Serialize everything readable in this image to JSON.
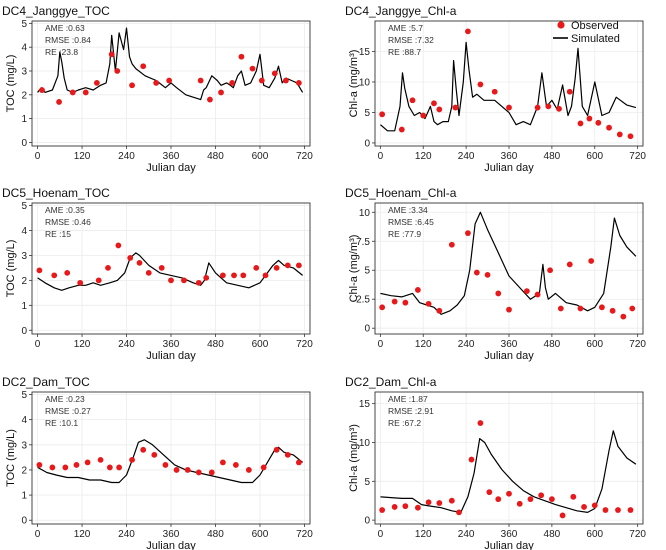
{
  "figure": {
    "x_axis_label": "Julian day",
    "legend": {
      "observed": "Observed",
      "simulated": "Simulated",
      "position": "top-right of DC4_Janggye_Chl-a panel"
    },
    "stat_labels": {
      "ame": "AME",
      "rmse": "RMSE",
      "re": "RE"
    },
    "colors": {
      "observed": "#e8191a",
      "simulated": "#000000",
      "panel_border": "#333333",
      "grid": "#ececec"
    }
  },
  "chart_data": [
    {
      "type": "scatter",
      "title": "DC4_Janggye_TOC",
      "xlabel": "Julian day",
      "ylabel": "TOC (mg/L)",
      "xlim": [
        -15,
        735
      ],
      "ylim": [
        -0.15,
        5.1
      ],
      "xticks": [
        0,
        120,
        240,
        360,
        480,
        600,
        720
      ],
      "yticks": [
        0,
        1,
        2,
        3,
        4,
        5
      ],
      "stats": {
        "ame": ":0.63",
        "rmse": ":0.84",
        "re": ":23.8"
      },
      "observed": {
        "name": "Observed",
        "x": [
          12,
          58,
          95,
          130,
          160,
          200,
          215,
          255,
          285,
          320,
          355,
          440,
          465,
          495,
          525,
          550,
          580,
          605,
          640,
          670,
          705
        ],
        "y": [
          2.2,
          1.7,
          2.1,
          2.1,
          2.5,
          3.7,
          3.0,
          2.4,
          3.2,
          2.5,
          2.6,
          2.6,
          1.8,
          2.1,
          2.5,
          3.6,
          3.1,
          2.6,
          2.9,
          2.6,
          2.5
        ]
      },
      "simulated": {
        "name": "Simulated",
        "x": [
          0,
          10,
          20,
          40,
          55,
          60,
          65,
          72,
          80,
          95,
          110,
          130,
          150,
          170,
          185,
          195,
          200,
          210,
          220,
          232,
          240,
          248,
          255,
          265,
          290,
          320,
          345,
          360,
          375,
          400,
          420,
          440,
          448,
          455,
          470,
          485,
          495,
          510,
          520,
          528,
          540,
          550,
          560,
          575,
          590,
          600,
          610,
          625,
          640,
          650,
          660,
          670,
          685,
          700,
          715
        ],
        "y": [
          2.1,
          2.3,
          2.1,
          2.2,
          2.8,
          3.8,
          3.4,
          2.7,
          2.2,
          2.1,
          2.2,
          2.3,
          2.2,
          2.4,
          2.5,
          3.3,
          4.5,
          3.0,
          4.6,
          3.9,
          4.8,
          3.6,
          3.3,
          3.1,
          2.8,
          2.6,
          2.3,
          2.5,
          2.3,
          2.0,
          1.9,
          1.8,
          2.2,
          2.3,
          2.8,
          2.6,
          2.4,
          2.5,
          2.4,
          2.3,
          2.8,
          3.0,
          2.4,
          2.5,
          3.0,
          3.7,
          2.4,
          2.3,
          2.7,
          3.2,
          2.5,
          2.7,
          2.6,
          2.5,
          2.1
        ]
      }
    },
    {
      "type": "scatter",
      "title": "DC4_Janggye_Chl-a",
      "xlabel": "Julian day",
      "ylabel": "Chl-a (mg/m³)",
      "xlim": [
        -15,
        735
      ],
      "ylim": [
        -0.5,
        20
      ],
      "xticks": [
        0,
        120,
        240,
        360,
        480,
        600,
        720
      ],
      "yticks": [
        0,
        5,
        10,
        15
      ],
      "stats": {
        "ame": ":5.7",
        "rmse": ":7.32",
        "re": ":88.7"
      },
      "observed": {
        "name": "Observed",
        "x": [
          5,
          60,
          90,
          120,
          150,
          165,
          210,
          245,
          280,
          320,
          360,
          440,
          470,
          500,
          530,
          560,
          585,
          610,
          640,
          670,
          700
        ],
        "y": [
          4.7,
          2.2,
          7.0,
          4.5,
          6.5,
          5.5,
          5.8,
          18.3,
          9.6,
          8.4,
          5.8,
          5.8,
          6.0,
          5.6,
          8.4,
          3.2,
          4.0,
          3.3,
          2.5,
          1.4,
          1.1
        ]
      },
      "simulated": {
        "name": "Simulated",
        "x": [
          0,
          20,
          40,
          55,
          62,
          68,
          80,
          95,
          110,
          125,
          140,
          150,
          160,
          175,
          190,
          200,
          205,
          212,
          220,
          232,
          240,
          248,
          258,
          270,
          290,
          320,
          360,
          380,
          400,
          420,
          440,
          452,
          465,
          480,
          495,
          510,
          525,
          535,
          545,
          553,
          565,
          580,
          600,
          620,
          640,
          660,
          690,
          715
        ],
        "y": [
          3.0,
          2.0,
          2.0,
          6.0,
          11.5,
          9.0,
          6.0,
          4.5,
          5.0,
          4.0,
          6.0,
          3.5,
          3.0,
          3.5,
          3.5,
          6.0,
          13.5,
          9.0,
          4.5,
          10.0,
          16.5,
          12.0,
          7.5,
          8.0,
          7.0,
          7.0,
          5.0,
          3.0,
          3.5,
          3.0,
          6.0,
          11.5,
          6.0,
          7.0,
          5.5,
          9.5,
          4.5,
          6.0,
          10.5,
          15.5,
          6.0,
          4.5,
          10.0,
          4.5,
          5.0,
          7.5,
          6.2,
          5.8
        ]
      }
    },
    {
      "type": "scatter",
      "title": "DC5_Hoenam_TOC",
      "xlabel": "Julian day",
      "ylabel": "TOC (mg/L)",
      "xlim": [
        -15,
        735
      ],
      "ylim": [
        -0.15,
        5.1
      ],
      "xticks": [
        0,
        120,
        240,
        360,
        480,
        600,
        720
      ],
      "yticks": [
        0,
        1,
        2,
        3,
        4,
        5
      ],
      "stats": {
        "ame": ":0.35",
        "rmse": ":0.46",
        "re": ":15"
      },
      "observed": {
        "name": "Observed",
        "x": [
          5,
          45,
          80,
          115,
          165,
          190,
          218,
          250,
          275,
          300,
          335,
          360,
          395,
          435,
          455,
          500,
          530,
          555,
          590,
          615,
          645,
          675,
          705
        ],
        "y": [
          2.4,
          2.2,
          2.3,
          1.9,
          2.0,
          2.5,
          3.4,
          2.9,
          2.7,
          2.3,
          2.5,
          2.0,
          2.0,
          1.9,
          2.1,
          2.2,
          2.2,
          2.2,
          2.5,
          2.2,
          2.5,
          2.6,
          2.6
        ]
      },
      "simulated": {
        "name": "Simulated",
        "x": [
          0,
          20,
          45,
          65,
          85,
          110,
          130,
          150,
          170,
          195,
          215,
          235,
          250,
          265,
          275,
          300,
          330,
          360,
          390,
          420,
          440,
          450,
          462,
          480,
          510,
          540,
          570,
          600,
          620,
          635,
          650,
          665,
          690,
          715
        ],
        "y": [
          2.1,
          1.9,
          1.7,
          1.6,
          1.7,
          1.8,
          1.8,
          1.9,
          1.8,
          1.9,
          2.0,
          2.3,
          2.9,
          3.1,
          3.0,
          2.6,
          2.3,
          2.2,
          2.1,
          1.9,
          1.8,
          2.0,
          2.7,
          2.3,
          1.9,
          1.8,
          1.7,
          1.9,
          2.3,
          2.6,
          2.8,
          2.6,
          2.5,
          2.2
        ]
      }
    },
    {
      "type": "scatter",
      "title": "DC5_Hoenam_Chl-a",
      "xlabel": "Julian day",
      "ylabel": "Chl-a (mg/m³)",
      "xlim": [
        -15,
        735
      ],
      "ylim": [
        -0.5,
        10.8
      ],
      "xticks": [
        0,
        120,
        240,
        360,
        480,
        600,
        720
      ],
      "yticks": [
        0,
        2.5,
        5,
        7.5,
        10
      ],
      "stats": {
        "ame": ":3.34",
        "rmse": ":6.45",
        "re": ":77.9"
      },
      "observed": {
        "name": "Observed",
        "x": [
          5,
          40,
          70,
          105,
          135,
          165,
          200,
          245,
          270,
          300,
          330,
          360,
          410,
          440,
          475,
          505,
          530,
          560,
          590,
          620,
          650,
          680,
          705
        ],
        "y": [
          1.8,
          2.3,
          2.2,
          3.3,
          2.1,
          1.5,
          7.2,
          8.2,
          4.8,
          4.6,
          3.0,
          1.6,
          3.2,
          2.9,
          5.0,
          1.7,
          5.5,
          1.7,
          5.8,
          1.8,
          1.5,
          1.0,
          1.7
        ]
      },
      "simulated": {
        "name": "Simulated",
        "x": [
          0,
          30,
          60,
          90,
          110,
          130,
          150,
          170,
          195,
          215,
          235,
          250,
          265,
          280,
          300,
          330,
          360,
          390,
          420,
          445,
          455,
          462,
          470,
          490,
          520,
          550,
          580,
          600,
          625,
          645,
          655,
          670,
          690,
          715
        ],
        "y": [
          3.0,
          2.8,
          2.7,
          3.0,
          2.2,
          2.0,
          1.8,
          1.2,
          1.5,
          2.0,
          2.8,
          5.0,
          9.0,
          10.0,
          8.5,
          6.5,
          4.5,
          3.5,
          2.5,
          3.0,
          5.5,
          3.5,
          2.5,
          3.0,
          2.2,
          2.0,
          1.5,
          1.8,
          3.0,
          7.0,
          9.5,
          8.0,
          7.0,
          6.2
        ]
      }
    },
    {
      "type": "scatter",
      "title": "DC2_Dam_TOC",
      "xlabel": "Julian day",
      "ylabel": "TOC (mg/L)",
      "xlim": [
        -15,
        735
      ],
      "ylim": [
        -0.15,
        5.1
      ],
      "xticks": [
        0,
        120,
        240,
        360,
        480,
        600,
        720
      ],
      "yticks": [
        0,
        1,
        2,
        3,
        4,
        5
      ],
      "stats": {
        "ame": ":0.23",
        "rmse": ":0.27",
        "re": ":10.1"
      },
      "observed": {
        "name": "Observed",
        "x": [
          5,
          40,
          75,
          105,
          135,
          170,
          195,
          220,
          255,
          285,
          315,
          345,
          375,
          405,
          435,
          470,
          500,
          535,
          570,
          610,
          645,
          675,
          705
        ],
        "y": [
          2.2,
          2.1,
          2.1,
          2.2,
          2.3,
          2.4,
          2.1,
          2.1,
          2.4,
          2.8,
          2.6,
          2.2,
          2.0,
          2.0,
          1.9,
          1.9,
          2.3,
          2.2,
          2.0,
          2.1,
          2.8,
          2.6,
          2.3
        ]
      },
      "simulated": {
        "name": "Simulated",
        "x": [
          0,
          25,
          50,
          80,
          110,
          140,
          170,
          200,
          220,
          240,
          258,
          272,
          288,
          310,
          340,
          370,
          400,
          430,
          460,
          490,
          520,
          550,
          580,
          600,
          620,
          640,
          650,
          665,
          690,
          715
        ],
        "y": [
          2.1,
          1.9,
          1.8,
          1.7,
          1.7,
          1.6,
          1.6,
          1.5,
          1.5,
          1.8,
          2.5,
          3.1,
          3.2,
          3.0,
          2.6,
          2.2,
          2.0,
          1.9,
          1.8,
          1.7,
          1.6,
          1.5,
          1.5,
          1.8,
          2.3,
          2.8,
          2.9,
          2.7,
          2.6,
          2.3
        ]
      }
    },
    {
      "type": "scatter",
      "title": "DC2_Dam_Chl-a",
      "xlabel": "Julian day",
      "ylabel": "Chl-a (mg/m³)",
      "xlim": [
        -15,
        735
      ],
      "ylim": [
        -0.5,
        16.5
      ],
      "xticks": [
        0,
        120,
        240,
        360,
        480,
        600,
        720
      ],
      "yticks": [
        0,
        5,
        10,
        15
      ],
      "stats": {
        "ame": ":1.87",
        "rmse": ":2.91",
        "re": ":67.2"
      },
      "observed": {
        "name": "Observed",
        "x": [
          5,
          40,
          70,
          105,
          135,
          165,
          200,
          220,
          255,
          280,
          305,
          330,
          360,
          390,
          420,
          450,
          480,
          510,
          540,
          570,
          600,
          630,
          665,
          700
        ],
        "y": [
          1.3,
          1.7,
          1.8,
          1.6,
          2.3,
          2.2,
          2.5,
          1.0,
          7.8,
          12.5,
          3.6,
          2.7,
          3.4,
          2.1,
          2.7,
          3.2,
          2.7,
          0.6,
          3.0,
          1.7,
          1.9,
          1.3,
          1.3,
          1.3
        ]
      },
      "simulated": {
        "name": "Simulated",
        "x": [
          0,
          30,
          60,
          90,
          115,
          140,
          170,
          200,
          225,
          245,
          262,
          278,
          292,
          310,
          340,
          370,
          400,
          430,
          460,
          490,
          520,
          550,
          580,
          600,
          620,
          640,
          652,
          665,
          690,
          715
        ],
        "y": [
          3.0,
          2.9,
          2.8,
          2.8,
          2.0,
          1.8,
          1.6,
          1.2,
          1.0,
          3.0,
          6.0,
          10.5,
          10.0,
          8.5,
          6.5,
          5.0,
          3.8,
          3.0,
          2.5,
          2.0,
          1.6,
          1.2,
          1.0,
          1.5,
          4.0,
          9.0,
          11.5,
          9.5,
          8.0,
          7.2
        ]
      }
    }
  ]
}
